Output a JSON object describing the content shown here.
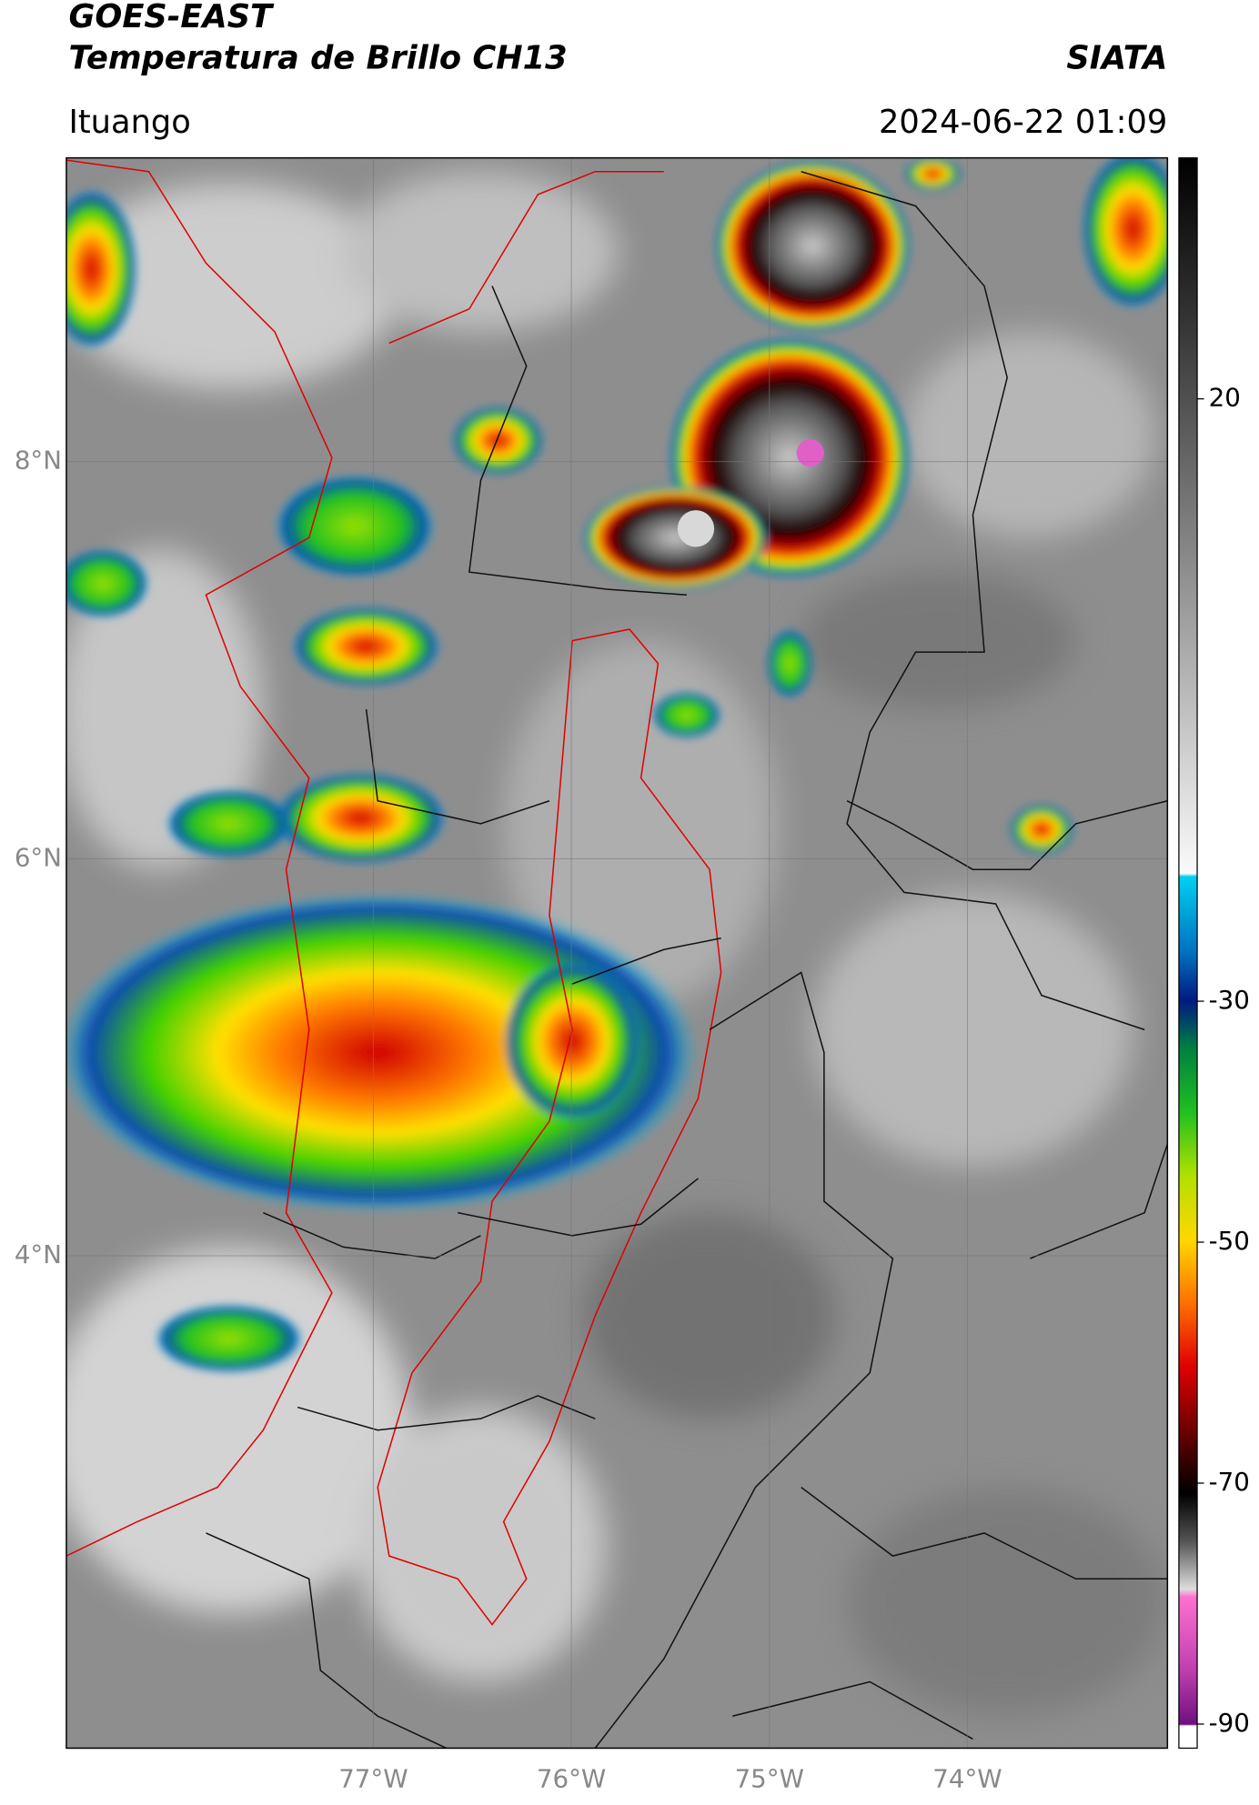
{
  "header": {
    "title": "GOES-EAST",
    "subtitle": "Temperatura de Brillo CH13",
    "brand": "SIATA",
    "location": "Ituango",
    "timestamp": "2024-06-22 01:09"
  },
  "map": {
    "lonlim": [
      -78.55,
      -72.99
    ],
    "latlim": [
      1.52,
      9.53
    ],
    "grid": true,
    "lat_ticks": [
      {
        "value": 8,
        "label": "8°N"
      },
      {
        "value": 6,
        "label": "6°N"
      },
      {
        "value": 4,
        "label": "4°N"
      }
    ],
    "lon_ticks": [
      {
        "value": -77,
        "label": "77°W"
      },
      {
        "value": -76,
        "label": "76°W"
      },
      {
        "value": -75,
        "label": "75°W"
      },
      {
        "value": -74,
        "label": "74°W"
      }
    ]
  },
  "colorbar": {
    "lim": [
      -92,
      40
    ],
    "ticks": [
      20,
      -30,
      -50,
      -70,
      -90
    ]
  }
}
